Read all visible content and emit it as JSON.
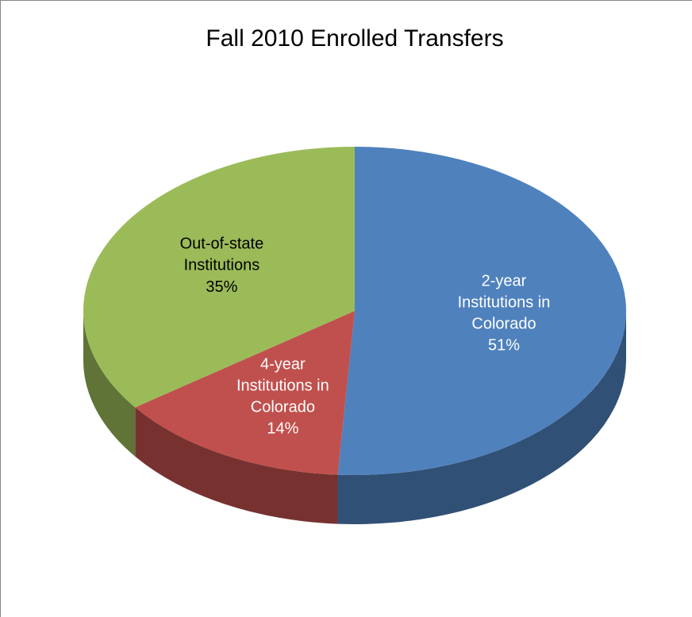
{
  "chart_data": {
    "type": "pie3d",
    "title": "Fall 2010 Enrolled Transfers",
    "categories": [
      "2-year Institutions in Colorado",
      "4-year Institutions in Colorado",
      "Out-of-state Institutions"
    ],
    "values": [
      51,
      14,
      35
    ],
    "value_labels": [
      "51%",
      "14%",
      "35%"
    ],
    "colors": [
      "#4f81bd",
      "#c0504d",
      "#9bbb59"
    ],
    "label_colors": [
      "#ffffff",
      "#ffffff",
      "#000000"
    ]
  }
}
